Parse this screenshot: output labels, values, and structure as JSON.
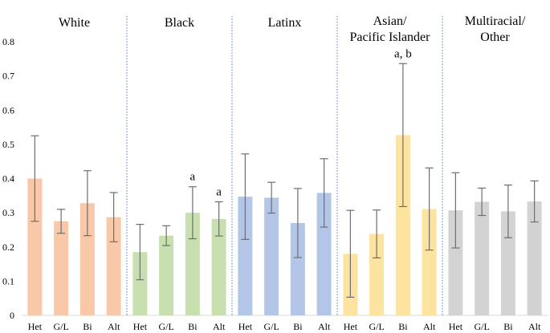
{
  "chart_data": {
    "type": "bar",
    "ylim": [
      0,
      0.8
    ],
    "yticks": [
      "0",
      "0.1",
      "0.2",
      "0.3",
      "0.4",
      "0.5",
      "0.6",
      "0.7",
      "0.8"
    ],
    "grid": false,
    "groups": [
      {
        "title_lines": [
          "White"
        ],
        "color": "#f8c8a8",
        "bars": [
          {
            "label": "Het",
            "value": 0.4,
            "err_low": 0.275,
            "err_high": 0.525,
            "annotation": ""
          },
          {
            "label": "G/L",
            "value": 0.275,
            "err_low": 0.24,
            "err_high": 0.31,
            "annotation": ""
          },
          {
            "label": "Bi",
            "value": 0.328,
            "err_low": 0.233,
            "err_high": 0.423,
            "annotation": ""
          },
          {
            "label": "Alt",
            "value": 0.287,
            "err_low": 0.215,
            "err_high": 0.359,
            "annotation": ""
          }
        ]
      },
      {
        "title_lines": [
          "Black"
        ],
        "color": "#c8e0b0",
        "bars": [
          {
            "label": "Het",
            "value": 0.185,
            "err_low": 0.104,
            "err_high": 0.266,
            "annotation": ""
          },
          {
            "label": "G/L",
            "value": 0.233,
            "err_low": 0.204,
            "err_high": 0.262,
            "annotation": ""
          },
          {
            "label": "Bi",
            "value": 0.3,
            "err_low": 0.224,
            "err_high": 0.376,
            "annotation": "a"
          },
          {
            "label": "Alt",
            "value": 0.282,
            "err_low": 0.232,
            "err_high": 0.332,
            "annotation": "a"
          }
        ]
      },
      {
        "title_lines": [
          "Latinx"
        ],
        "color": "#b4c6e8",
        "bars": [
          {
            "label": "Het",
            "value": 0.347,
            "err_low": 0.222,
            "err_high": 0.472,
            "annotation": ""
          },
          {
            "label": "G/L",
            "value": 0.344,
            "err_low": 0.299,
            "err_high": 0.389,
            "annotation": ""
          },
          {
            "label": "Bi",
            "value": 0.27,
            "err_low": 0.169,
            "err_high": 0.371,
            "annotation": ""
          },
          {
            "label": "Alt",
            "value": 0.358,
            "err_low": 0.258,
            "err_high": 0.458,
            "annotation": ""
          }
        ]
      },
      {
        "title_lines": [
          "Asian/",
          "Pacific Islander"
        ],
        "color": "#fde3a0",
        "bars": [
          {
            "label": "Het",
            "value": 0.18,
            "err_low": 0.053,
            "err_high": 0.307,
            "annotation": ""
          },
          {
            "label": "G/L",
            "value": 0.238,
            "err_low": 0.168,
            "err_high": 0.308,
            "annotation": ""
          },
          {
            "label": "Bi",
            "value": 0.527,
            "err_low": 0.318,
            "err_high": 0.736,
            "annotation": "a, b"
          },
          {
            "label": "Alt",
            "value": 0.311,
            "err_low": 0.191,
            "err_high": 0.431,
            "annotation": ""
          }
        ]
      },
      {
        "title_lines": [
          "Multiracial/",
          "Other"
        ],
        "color": "#d3d3d3",
        "bars": [
          {
            "label": "Het",
            "value": 0.307,
            "err_low": 0.197,
            "err_high": 0.417,
            "annotation": ""
          },
          {
            "label": "G/L",
            "value": 0.332,
            "err_low": 0.292,
            "err_high": 0.372,
            "annotation": ""
          },
          {
            "label": "Bi",
            "value": 0.304,
            "err_low": 0.227,
            "err_high": 0.381,
            "annotation": ""
          },
          {
            "label": "Alt",
            "value": 0.333,
            "err_low": 0.273,
            "err_high": 0.393,
            "annotation": ""
          }
        ]
      }
    ]
  }
}
